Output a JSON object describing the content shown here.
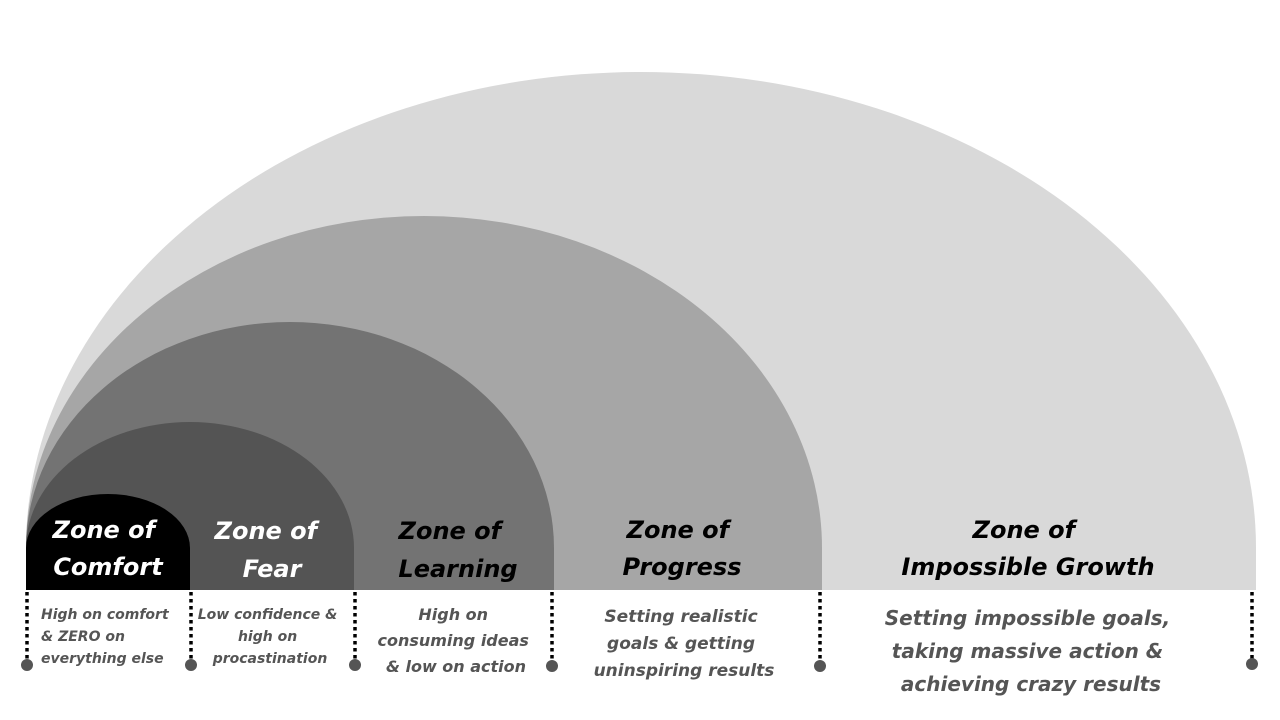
{
  "zones": [
    {
      "id": "comfort",
      "title": [
        "Zone of",
        "Comfort"
      ],
      "description": [
        "High on comfort",
        "& ZERO on",
        "everything else"
      ],
      "fill": "#000000",
      "title_color": "#ffffff"
    },
    {
      "id": "fear",
      "title": [
        "Zone of",
        "Fear"
      ],
      "description": [
        "Low confidence &",
        "high on",
        "procastination"
      ],
      "fill": "#545454",
      "title_color": "#ffffff"
    },
    {
      "id": "learning",
      "title": [
        "Zone of",
        "Learning"
      ],
      "description": [
        "High on",
        "consuming ideas",
        "& low on action"
      ],
      "fill": "#737373",
      "title_color": "#000000"
    },
    {
      "id": "progress",
      "title": [
        "Zone of",
        "Progress"
      ],
      "description": [
        "Setting realistic",
        "goals & getting",
        "uninspiring results"
      ],
      "fill": "#a6a6a6",
      "title_color": "#000000"
    },
    {
      "id": "impossible-growth",
      "title": [
        "Zone of",
        "Impossible Growth"
      ],
      "description": [
        "Setting impossible goals,",
        "taking massive action &",
        "achieving crazy results"
      ],
      "fill": "#d9d9d9",
      "title_color": "#000000"
    }
  ],
  "colors": {
    "divider": "#000000",
    "marker": "#555555",
    "description_text": "#555555"
  }
}
